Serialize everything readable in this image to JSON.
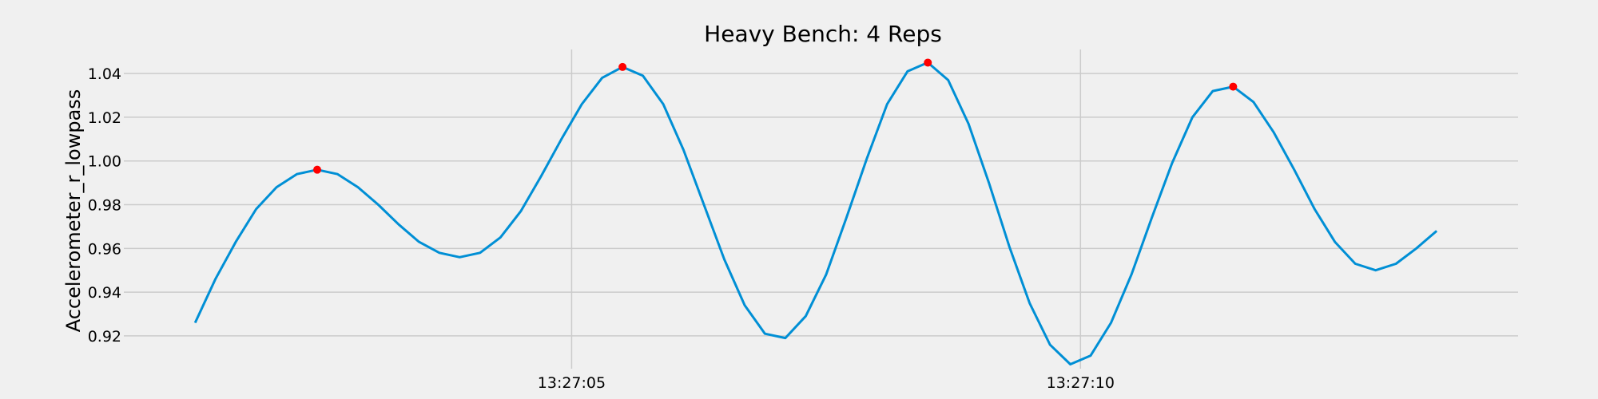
{
  "chart_data": {
    "type": "line",
    "title": "Heavy Bench: 4 Reps",
    "xlabel": "",
    "ylabel": "Accelerometer_r_lowpass",
    "grid": true,
    "x_unit": "time",
    "x_tick_labels": [
      "13:27:05",
      "13:27:10"
    ],
    "x_tick_values": [
      5,
      10
    ],
    "x_range": [
      0.6,
      14.3
    ],
    "y_range": [
      0.905,
      1.051
    ],
    "y_ticks": [
      0.92,
      0.94,
      0.96,
      0.98,
      1.0,
      1.02,
      1.04
    ],
    "y_tick_labels": [
      "0.92",
      "0.94",
      "0.96",
      "0.98",
      "1.00",
      "1.02",
      "1.04"
    ],
    "line_color": "#008fd5",
    "peak_color": "#ff0000",
    "series": [
      {
        "x": [
          1.3,
          1.5,
          1.7,
          1.9,
          2.1,
          2.3,
          2.5,
          2.7,
          2.9,
          3.1,
          3.3,
          3.5,
          3.7,
          3.9,
          4.1,
          4.3,
          4.5,
          4.7,
          4.9,
          5.1,
          5.3,
          5.5,
          5.7,
          5.9,
          6.1,
          6.3,
          6.5,
          6.7,
          6.9,
          7.1,
          7.3,
          7.5,
          7.7,
          7.9,
          8.1,
          8.3,
          8.5,
          8.7,
          8.9,
          9.1,
          9.3,
          9.5,
          9.7,
          9.9,
          10.1,
          10.3,
          10.5,
          10.7,
          10.9,
          11.1,
          11.3,
          11.5,
          11.7,
          11.9,
          12.1,
          12.3,
          12.5,
          12.7,
          12.9,
          13.1,
          13.3,
          13.5
        ],
        "values": [
          0.926,
          0.946,
          0.963,
          0.978,
          0.988,
          0.994,
          0.996,
          0.994,
          0.988,
          0.98,
          0.971,
          0.963,
          0.958,
          0.956,
          0.958,
          0.965,
          0.977,
          0.993,
          1.01,
          1.026,
          1.038,
          1.043,
          1.039,
          1.026,
          1.005,
          0.98,
          0.955,
          0.934,
          0.921,
          0.919,
          0.929,
          0.948,
          0.974,
          1.001,
          1.026,
          1.041,
          1.045,
          1.037,
          1.017,
          0.99,
          0.961,
          0.935,
          0.916,
          0.907,
          0.911,
          0.926,
          0.948,
          0.974,
          0.999,
          1.02,
          1.032,
          1.034,
          1.027,
          1.013,
          0.996,
          0.978,
          0.963,
          0.953,
          0.95,
          0.953,
          0.96,
          0.968
        ]
      }
    ],
    "peaks": [
      {
        "x": 2.5,
        "y": 0.996
      },
      {
        "x": 5.5,
        "y": 1.043
      },
      {
        "x": 8.5,
        "y": 1.045
      },
      {
        "x": 11.5,
        "y": 1.034
      }
    ]
  }
}
